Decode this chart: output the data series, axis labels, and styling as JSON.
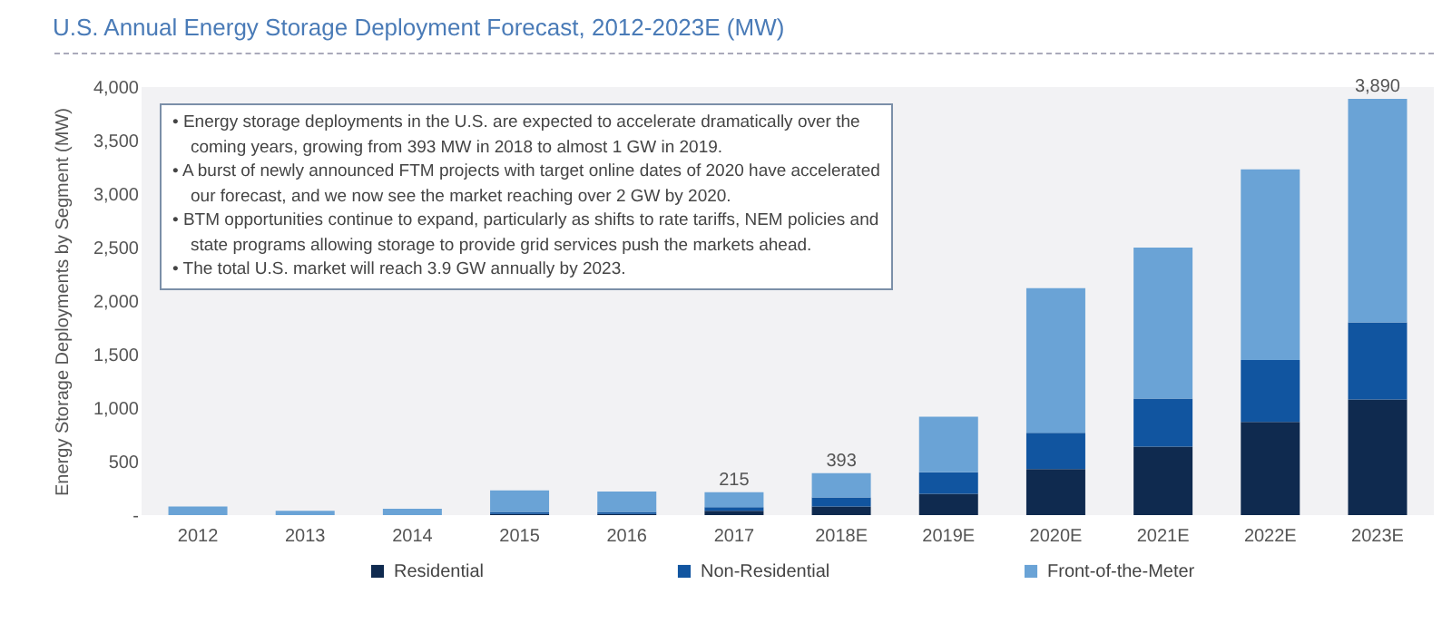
{
  "chart_data": {
    "type": "bar",
    "title": "U.S. Annual Energy Storage Deployment Forecast, 2012-2023E (MW)",
    "ylabel": "Energy Storage Deployments by Segment (MW)",
    "categories": [
      "2012",
      "2013",
      "2014",
      "2015",
      "2016",
      "2017",
      "2018E",
      "2019E",
      "2020E",
      "2021E",
      "2022E",
      "2023E"
    ],
    "series": [
      {
        "name": "Residential",
        "color": "#0f2a4f",
        "values": [
          0,
          0,
          0,
          10,
          10,
          40,
          80,
          200,
          430,
          640,
          870,
          1080
        ]
      },
      {
        "name": "Non-Residential",
        "color": "#1155a0",
        "values": [
          0,
          0,
          0,
          20,
          20,
          35,
          85,
          200,
          340,
          450,
          580,
          720
        ]
      },
      {
        "name": "Front-of-the-Meter",
        "color": "#6aa3d6",
        "values": [
          80,
          40,
          60,
          200,
          190,
          140,
          228,
          520,
          1350,
          1410,
          1780,
          2090
        ]
      }
    ],
    "stacked": true,
    "totals": [
      null,
      null,
      null,
      null,
      null,
      "215",
      "393",
      null,
      null,
      null,
      null,
      "3,890"
    ],
    "ylim": [
      0,
      4000
    ],
    "yticks": [
      {
        "value": 0,
        "label": "-"
      },
      500,
      {
        "value": 1000,
        "label": "1,000"
      },
      {
        "value": 1500,
        "label": "1,500"
      },
      {
        "value": 2000,
        "label": "2,000"
      },
      {
        "value": 2500,
        "label": "2,500"
      },
      {
        "value": 3000,
        "label": "3,000"
      },
      {
        "value": 3500,
        "label": "3,500"
      },
      {
        "value": 4000,
        "label": "4,000"
      }
    ],
    "grid": false,
    "legend": "bottom",
    "annotations": [
      "• Energy storage deployments in the U.S. are expected to accelerate dramatically over the coming years, growing from 393 MW in 2018 to almost 1 GW in 2019.",
      "• A burst of newly announced FTM projects with target online dates of 2020 have accelerated our forecast, and we now see the market reaching over 2 GW by 2020.",
      "• BTM opportunities continue to expand, particularly as shifts to rate tariffs, NEM policies and state programs allowing storage to provide grid services push the markets ahead.",
      "• The total U.S. market will reach 3.9 GW annually by 2023."
    ]
  }
}
